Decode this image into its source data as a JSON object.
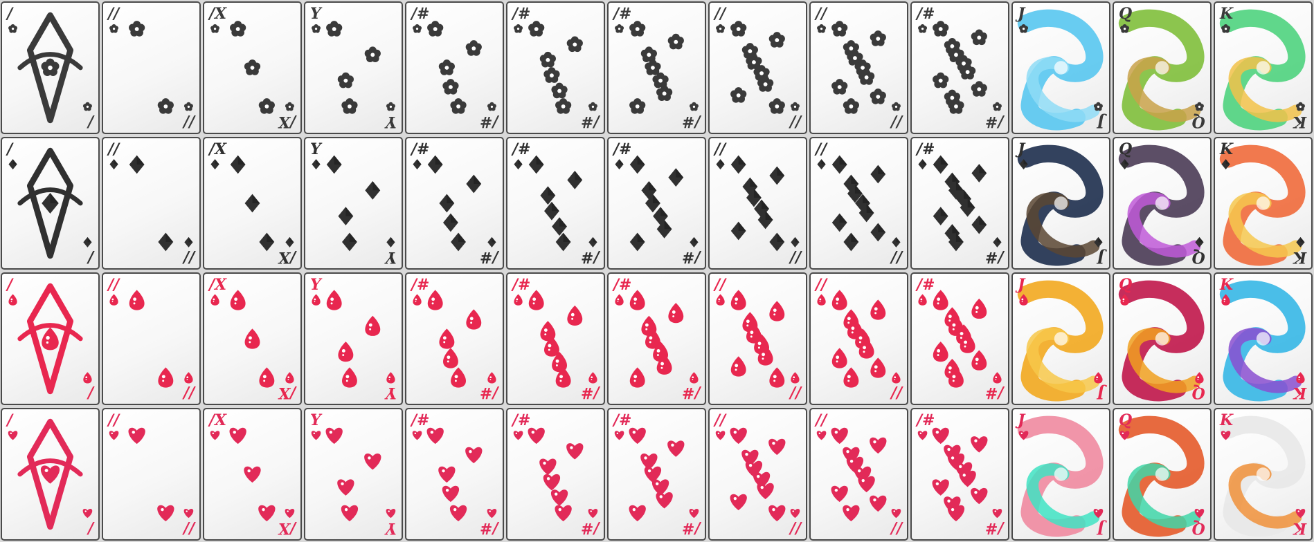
{
  "title": "",
  "colors": {
    "background": "#d9d9d9",
    "card": "#f6f6f6",
    "dark_ink": "#333333",
    "red_ink": "#e8274f",
    "pink_ink": "#e22a58"
  },
  "suits": [
    {
      "name": "flower-suit",
      "icon": "flower-icon",
      "ink": "#3a3a3a"
    },
    {
      "name": "diamond-suit",
      "icon": "diamond-icon",
      "ink": "#303030"
    },
    {
      "name": "drop-suit",
      "icon": "drop-icon",
      "ink": "#e8274f"
    },
    {
      "name": "heart-suit",
      "icon": "heart-icon",
      "ink": "#e22a58"
    }
  ],
  "ranks": [
    {
      "label": "/",
      "pips": 1,
      "face": false
    },
    {
      "label": "//",
      "pips": 2,
      "face": false
    },
    {
      "label": "/X",
      "pips": 3,
      "face": false
    },
    {
      "label": "Y",
      "pips": 4,
      "face": false
    },
    {
      "label": "/#",
      "pips": 5,
      "face": false
    },
    {
      "label": "/#",
      "pips": 6,
      "face": false
    },
    {
      "label": "/#",
      "pips": 7,
      "face": false
    },
    {
      "label": "//",
      "pips": 8,
      "face": false
    },
    {
      "label": "//",
      "pips": 9,
      "face": false
    },
    {
      "label": "/#",
      "pips": 10,
      "face": false
    },
    {
      "label": "J",
      "pips": 0,
      "face": true
    },
    {
      "label": "Q",
      "pips": 0,
      "face": true
    },
    {
      "label": "K",
      "pips": 0,
      "face": true
    }
  ],
  "face_palettes": [
    [
      [
        "#58c7f0",
        "#8fdcf6"
      ],
      [
        "#7fbf3b",
        "#c9a24a"
      ],
      [
        "#4fd37e",
        "#f2c24a"
      ]
    ],
    [
      [
        "#1d2d4d",
        "#5a4632"
      ],
      [
        "#4a3b55",
        "#c05ad8"
      ],
      [
        "#f06a3b",
        "#f6c84f"
      ]
    ],
    [
      [
        "#f2a91f",
        "#f7c84a"
      ],
      [
        "#c0164a",
        "#f0a020"
      ],
      [
        "#36b7e6",
        "#8a4fd0"
      ]
    ],
    [
      [
        "#f08aa0",
        "#3fe3c3"
      ],
      [
        "#e45a2a",
        "#3fd6a8"
      ],
      [
        "#e8e8e8",
        "#f0903a"
      ]
    ]
  ]
}
